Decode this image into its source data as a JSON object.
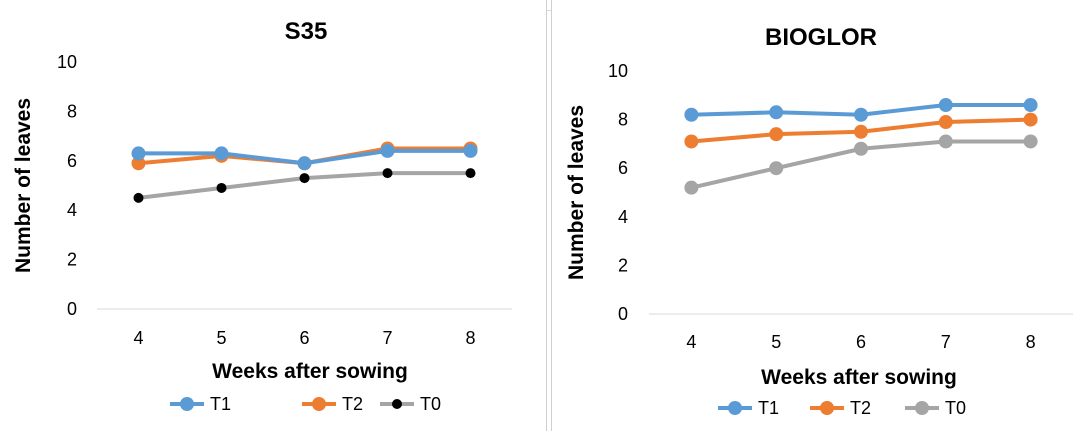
{
  "chart_data": [
    {
      "type": "line",
      "title": "S35",
      "xlabel": "Weeks after sowing",
      "ylabel": "Number of leaves",
      "categories": [
        "4",
        "5",
        "6",
        "7",
        "8"
      ],
      "ylim": [
        0,
        10
      ],
      "yticks": [
        "0",
        "2",
        "4",
        "6",
        "8",
        "10"
      ],
      "grid": false,
      "legend_position": "bottom",
      "series": [
        {
          "name": "T1",
          "color": "#5b9bd5",
          "marker": "circle",
          "values": [
            6.3,
            6.3,
            5.9,
            6.4,
            6.4
          ]
        },
        {
          "name": "T2",
          "color": "#ed7d31",
          "marker": "circle",
          "values": [
            5.9,
            6.2,
            5.9,
            6.5,
            6.5
          ]
        },
        {
          "name": "T0",
          "color": "#a5a5a5",
          "marker": "black-dot",
          "values": [
            4.5,
            4.9,
            5.3,
            5.5,
            5.5
          ]
        }
      ]
    },
    {
      "type": "line",
      "title": "BIOGLOR",
      "xlabel": "Weeks after sowing",
      "ylabel": "Number of leaves",
      "categories": [
        "4",
        "5",
        "6",
        "7",
        "8"
      ],
      "ylim": [
        0,
        10
      ],
      "yticks": [
        "0",
        "2",
        "4",
        "6",
        "8",
        "10"
      ],
      "grid": false,
      "legend_position": "bottom",
      "series": [
        {
          "name": "T1",
          "color": "#5b9bd5",
          "marker": "circle",
          "values": [
            8.2,
            8.3,
            8.2,
            8.6,
            8.6
          ]
        },
        {
          "name": "T2",
          "color": "#ed7d31",
          "marker": "circle",
          "values": [
            7.1,
            7.4,
            7.5,
            7.9,
            8.0
          ]
        },
        {
          "name": "T0",
          "color": "#a5a5a5",
          "marker": "circle",
          "values": [
            5.2,
            6.0,
            6.8,
            7.1,
            7.1
          ]
        }
      ]
    }
  ]
}
